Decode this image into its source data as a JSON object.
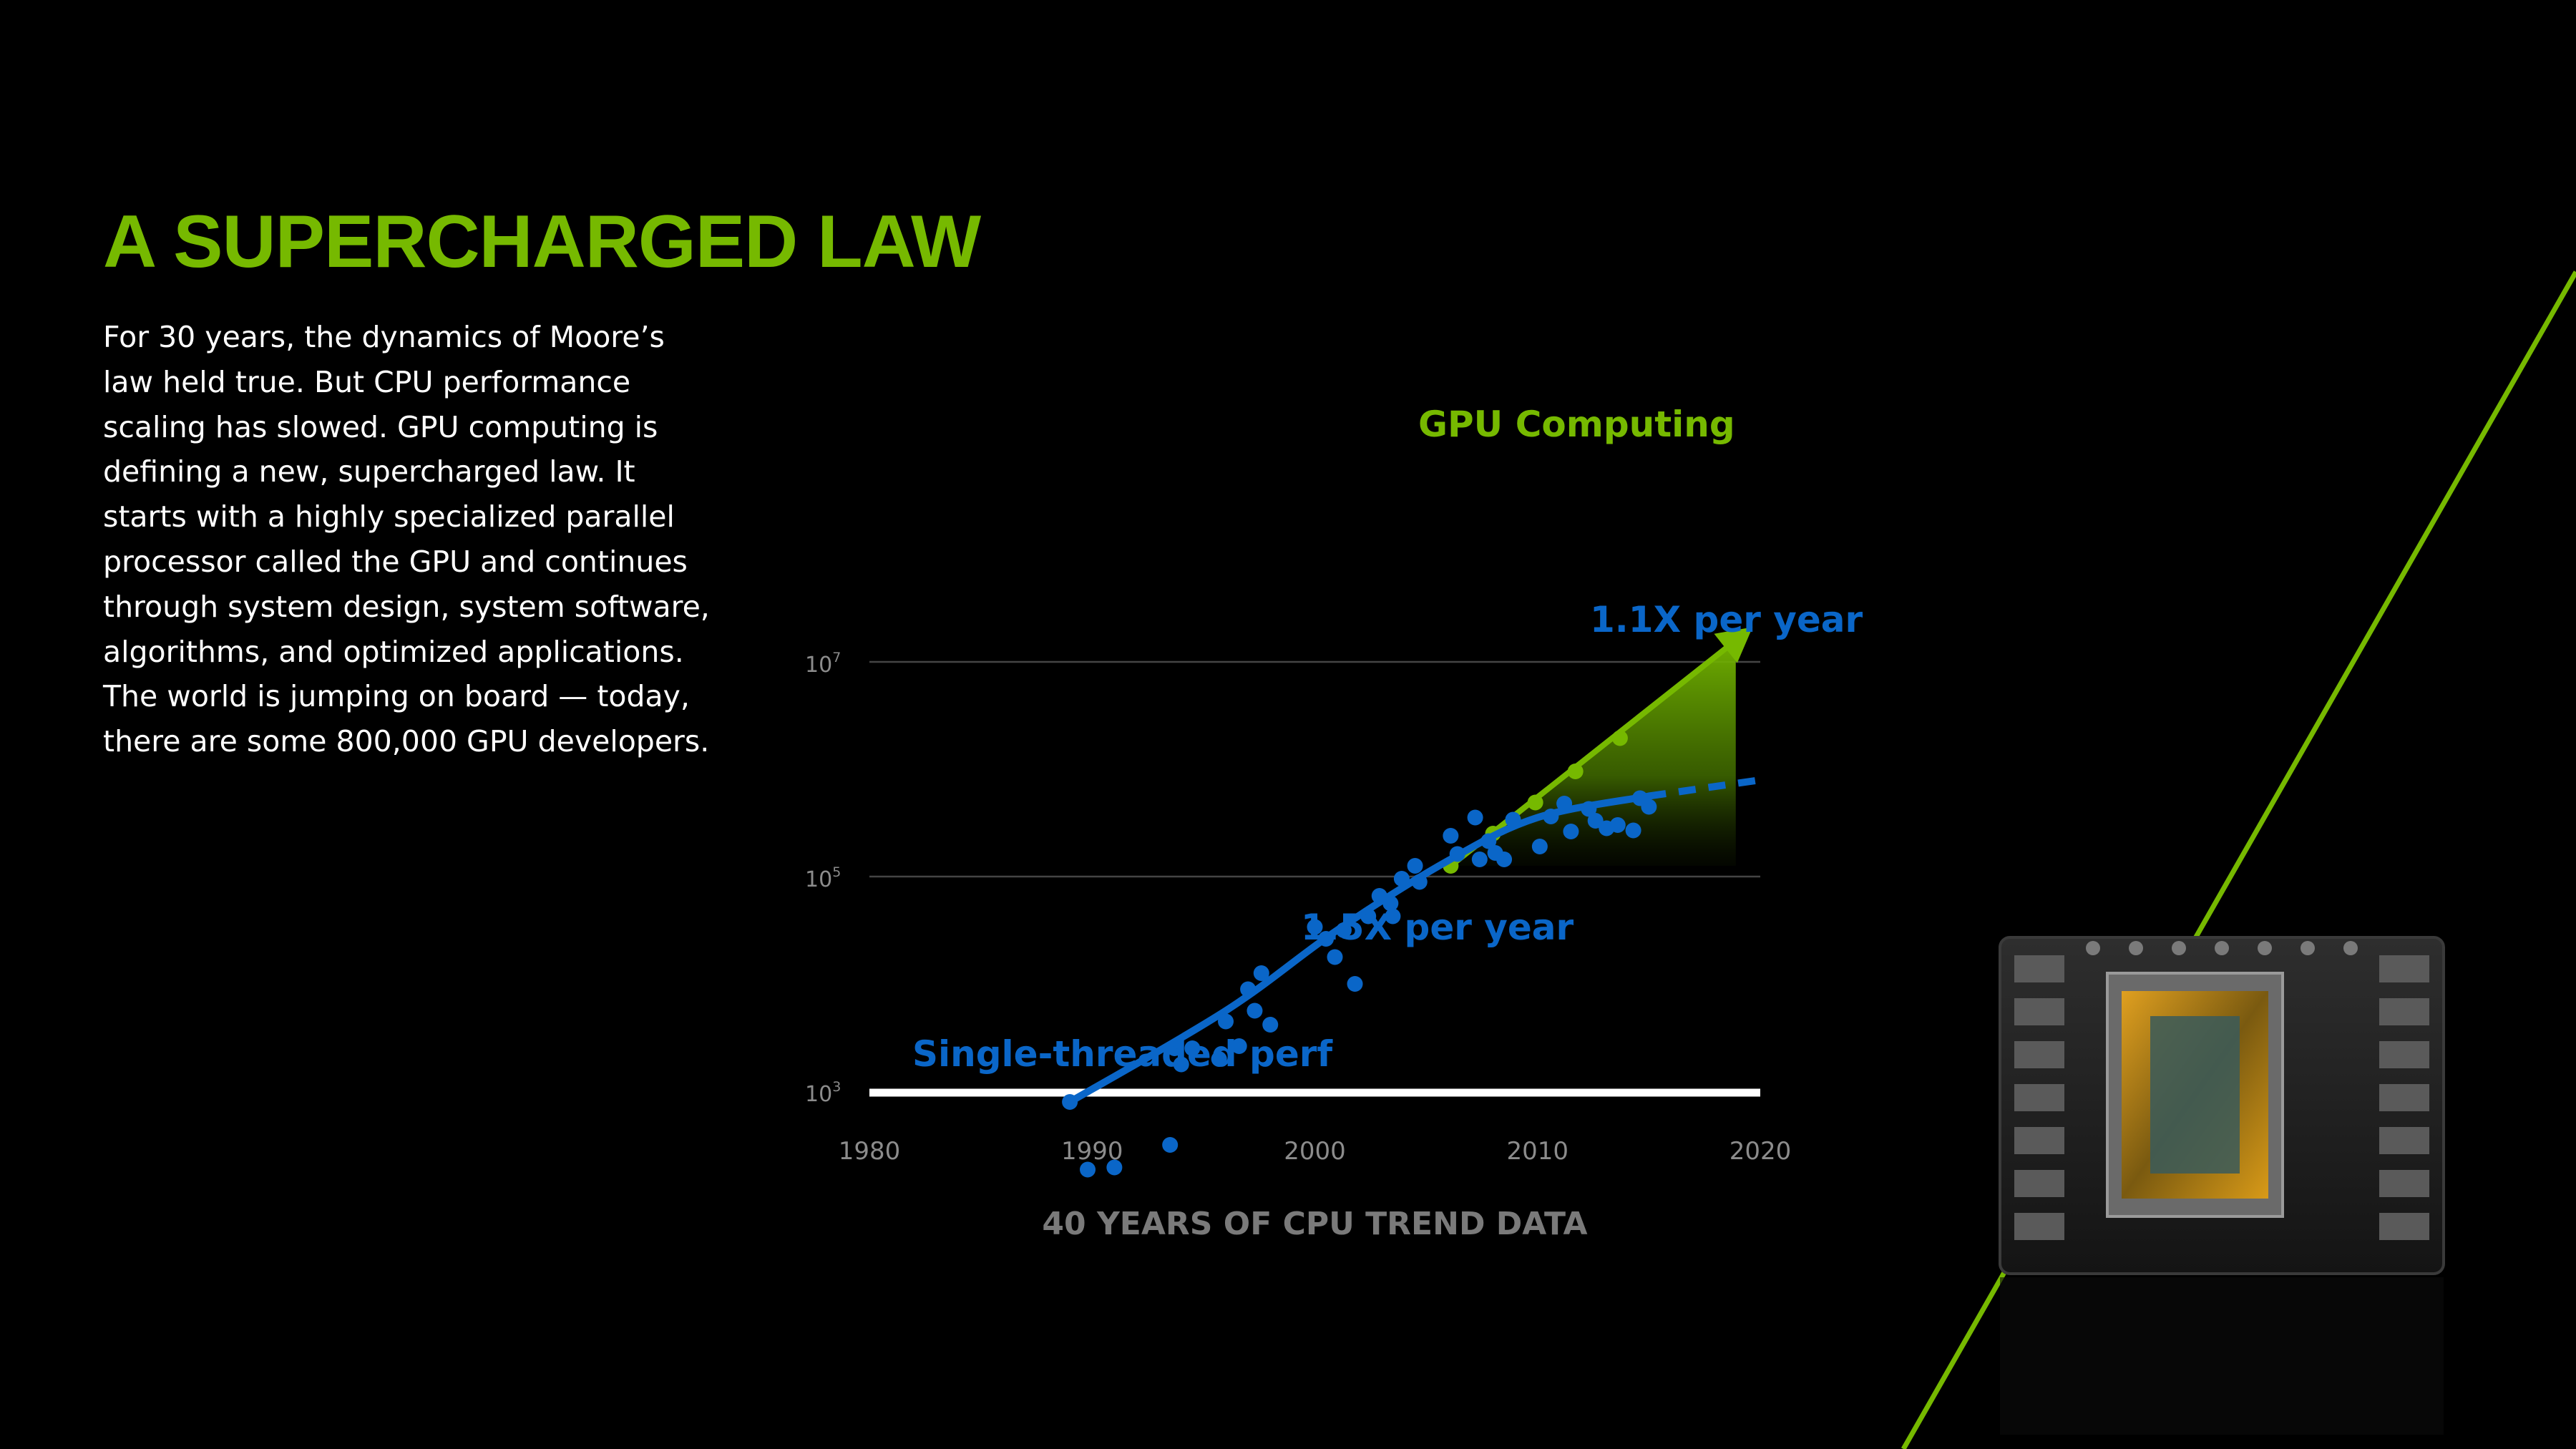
{
  "slide": {
    "title": "A SUPERCHARGED LAW",
    "body_lines": [
      "For 30 years, the dynamics of Moore’s",
      "law held true. But CPU performance",
      "scaling has slowed. GPU computing is",
      "defining a new, supercharged law. It",
      "starts with a highly specialized parallel",
      "processor called the GPU and continues",
      "through system design, system software,",
      "algorithms, and optimized applications.",
      "The world is jumping on board — today,",
      "there are some 800,000 GPU developers."
    ]
  },
  "colors": {
    "background": "#000000",
    "accent_green": "#76b900",
    "cpu_blue": "#0a66c8",
    "body_text": "#ffffff",
    "axis_text": "#8c8c8c",
    "gridline": "#444444",
    "baseline": "#ffffff"
  },
  "decorations": {
    "accent_stripe": "diagonal-green-line",
    "product_image": "gpu-board-render"
  },
  "chart_data": {
    "type": "scatter",
    "caption": "40 YEARS OF CPU TREND DATA",
    "xlabel": "",
    "ylabel": "",
    "x_ticks": [
      "1980",
      "1990",
      "2000",
      "2010",
      "2020"
    ],
    "y_ticks": [
      {
        "base": "10",
        "exp": "3",
        "value": 1000
      },
      {
        "base": "10",
        "exp": "5",
        "value": 100000
      },
      {
        "base": "10",
        "exp": "7",
        "value": 10000000
      }
    ],
    "y_scale": "log",
    "xlim": [
      1980,
      2020
    ],
    "ylim_log10": [
      1,
      7
    ],
    "grid": true,
    "series": [
      {
        "name": "Single-threaded perf",
        "color": "#0a66c8",
        "points": [
          {
            "x": 1989.0,
            "y": 2.9
          },
          {
            "x": 1989.8,
            "y": 2.27
          },
          {
            "x": 1991.0,
            "y": 2.29
          },
          {
            "x": 1993.5,
            "y": 2.5
          },
          {
            "x": 1993.7,
            "y": 3.4
          },
          {
            "x": 1994.0,
            "y": 3.25
          },
          {
            "x": 1994.5,
            "y": 3.4
          },
          {
            "x": 1995.7,
            "y": 3.3
          },
          {
            "x": 1996.0,
            "y": 3.65
          },
          {
            "x": 1996.6,
            "y": 3.42
          },
          {
            "x": 1997.0,
            "y": 3.95
          },
          {
            "x": 1997.3,
            "y": 3.75
          },
          {
            "x": 1997.6,
            "y": 4.1
          },
          {
            "x": 1998.0,
            "y": 3.62
          },
          {
            "x": 2000.0,
            "y": 4.53
          },
          {
            "x": 2000.5,
            "y": 4.42
          },
          {
            "x": 2000.9,
            "y": 4.25
          },
          {
            "x": 2001.3,
            "y": 4.5
          },
          {
            "x": 2001.8,
            "y": 4.0
          },
          {
            "x": 2002.4,
            "y": 4.63
          },
          {
            "x": 2002.9,
            "y": 4.82
          },
          {
            "x": 2003.4,
            "y": 4.75
          },
          {
            "x": 2003.5,
            "y": 4.63
          },
          {
            "x": 2003.9,
            "y": 4.98
          },
          {
            "x": 2004.5,
            "y": 5.1
          },
          {
            "x": 2004.7,
            "y": 4.95
          },
          {
            "x": 2006.1,
            "y": 5.38
          },
          {
            "x": 2006.4,
            "y": 5.21
          },
          {
            "x": 2007.2,
            "y": 5.55
          },
          {
            "x": 2007.4,
            "y": 5.16
          },
          {
            "x": 2007.8,
            "y": 5.33
          },
          {
            "x": 2008.1,
            "y": 5.22
          },
          {
            "x": 2008.5,
            "y": 5.16
          },
          {
            "x": 2008.9,
            "y": 5.53
          },
          {
            "x": 2010.1,
            "y": 5.28
          },
          {
            "x": 2010.6,
            "y": 5.56
          },
          {
            "x": 2011.2,
            "y": 5.68
          },
          {
            "x": 2011.5,
            "y": 5.42
          },
          {
            "x": 2012.3,
            "y": 5.63
          },
          {
            "x": 2012.6,
            "y": 5.52
          },
          {
            "x": 2013.1,
            "y": 5.45
          },
          {
            "x": 2013.6,
            "y": 5.48
          },
          {
            "x": 2014.3,
            "y": 5.43
          },
          {
            "x": 2014.6,
            "y": 5.73
          },
          {
            "x": 2015.0,
            "y": 5.65
          }
        ]
      },
      {
        "name": "GPU Computing",
        "color": "#76b900",
        "points": [
          {
            "x": 2006.1,
            "y": 5.1
          },
          {
            "x": 2008.0,
            "y": 5.4
          },
          {
            "x": 2009.9,
            "y": 5.69
          },
          {
            "x": 2011.7,
            "y": 5.98
          },
          {
            "x": 2013.7,
            "y": 6.29
          }
        ]
      }
    ],
    "trendlines": [
      {
        "series": "Single-threaded perf",
        "label": "1.5X per year",
        "points": [
          [
            1989.0,
            2.9
          ],
          [
            1996.0,
            3.75
          ],
          [
            2001.0,
            4.5
          ],
          [
            2006.0,
            5.15
          ],
          [
            2010.0,
            5.55
          ],
          [
            2015.0,
            5.75
          ]
        ],
        "projection": [
          [
            2015.0,
            5.75
          ],
          [
            2020.0,
            5.9
          ]
        ]
      },
      {
        "series": "GPU Computing",
        "label": "1.1X per year",
        "points": [
          [
            2006.1,
            5.1
          ],
          [
            2018.9,
            7.2
          ]
        ]
      }
    ]
  }
}
